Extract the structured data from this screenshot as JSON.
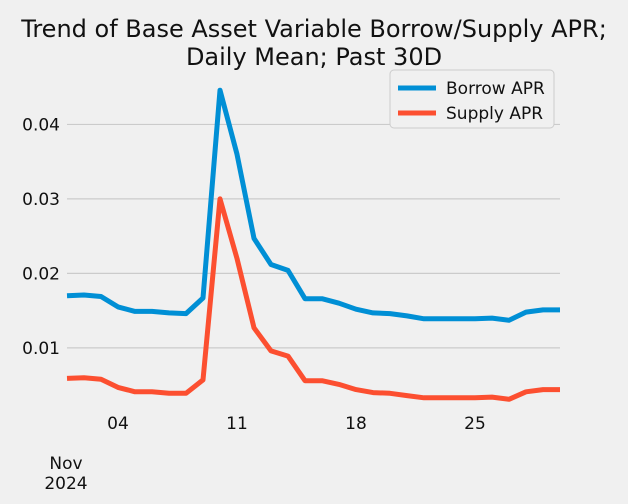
{
  "chart_data": {
    "type": "line",
    "title_lines": [
      "Trend of Base Asset Variable Borrow/Supply APR;",
      "Daily Mean; Past 30D"
    ],
    "xlabel": "",
    "ylabel": "",
    "x_ticks": [
      "04",
      "11",
      "18",
      "25"
    ],
    "x_sublabel": [
      "Nov",
      "2024"
    ],
    "x": [
      "2024-11-01",
      "2024-11-02",
      "2024-11-03",
      "2024-11-04",
      "2024-11-05",
      "2024-11-06",
      "2024-11-07",
      "2024-11-08",
      "2024-11-09",
      "2024-11-10",
      "2024-11-11",
      "2024-11-12",
      "2024-11-13",
      "2024-11-14",
      "2024-11-15",
      "2024-11-16",
      "2024-11-17",
      "2024-11-18",
      "2024-11-19",
      "2024-11-20",
      "2024-11-21",
      "2024-11-22",
      "2024-11-23",
      "2024-11-24",
      "2024-11-25",
      "2024-11-26",
      "2024-11-27",
      "2024-11-28",
      "2024-11-29",
      "2024-11-30"
    ],
    "xlim": [
      "2024-11-01",
      "2024-11-30"
    ],
    "ylim": [
      0.0022,
      0.0465
    ],
    "y_ticks": [
      "0.01",
      "0.02",
      "0.03",
      "0.04"
    ],
    "y_tick_values": [
      0.01,
      0.02,
      0.03,
      0.04
    ],
    "grid": true,
    "legend_position": "top-right",
    "series": [
      {
        "name": "Borrow APR",
        "color": "#008fd5",
        "values": [
          0.017,
          0.0171,
          0.0169,
          0.0155,
          0.0149,
          0.0149,
          0.0147,
          0.0146,
          0.0167,
          0.0446,
          0.036,
          0.0247,
          0.0212,
          0.0204,
          0.0166,
          0.0166,
          0.016,
          0.0152,
          0.0147,
          0.0146,
          0.0143,
          0.0139,
          0.0139,
          0.0139,
          0.0139,
          0.014,
          0.0137,
          0.0148,
          0.0151,
          0.0151
        ]
      },
      {
        "name": "Supply APR",
        "color": "#fc4f30",
        "values": [
          0.0059,
          0.006,
          0.0058,
          0.0047,
          0.0041,
          0.0041,
          0.0039,
          0.0039,
          0.0057,
          0.03,
          0.022,
          0.0127,
          0.0096,
          0.0089,
          0.0056,
          0.0056,
          0.0051,
          0.0044,
          0.004,
          0.0039,
          0.0036,
          0.0033,
          0.0033,
          0.0033,
          0.0033,
          0.0034,
          0.0031,
          0.0041,
          0.0044,
          0.0044
        ]
      }
    ]
  }
}
